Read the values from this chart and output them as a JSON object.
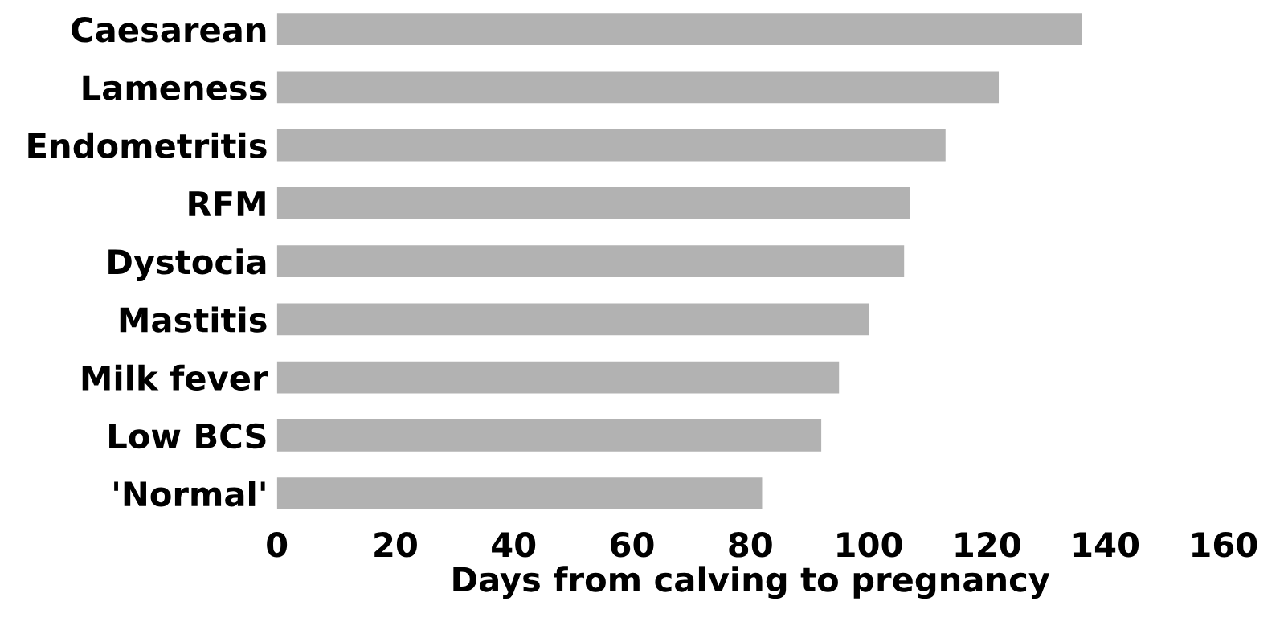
{
  "chart_data": {
    "type": "bar",
    "orientation": "horizontal",
    "xlabel": "Days from calving to pregnancy",
    "categories": [
      "Caesarean",
      "Lameness",
      "Endometritis",
      "RFM",
      "Dystocia",
      "Mastitis",
      "Milk fever",
      "Low BCS",
      "'Normal'"
    ],
    "values": [
      136,
      122,
      113,
      107,
      106,
      100,
      95,
      92,
      82
    ],
    "color": "#b2b2b2",
    "xlim": [
      0,
      160
    ],
    "xticks": [
      0,
      20,
      40,
      60,
      80,
      100,
      120,
      140,
      160
    ],
    "grid": false
  }
}
